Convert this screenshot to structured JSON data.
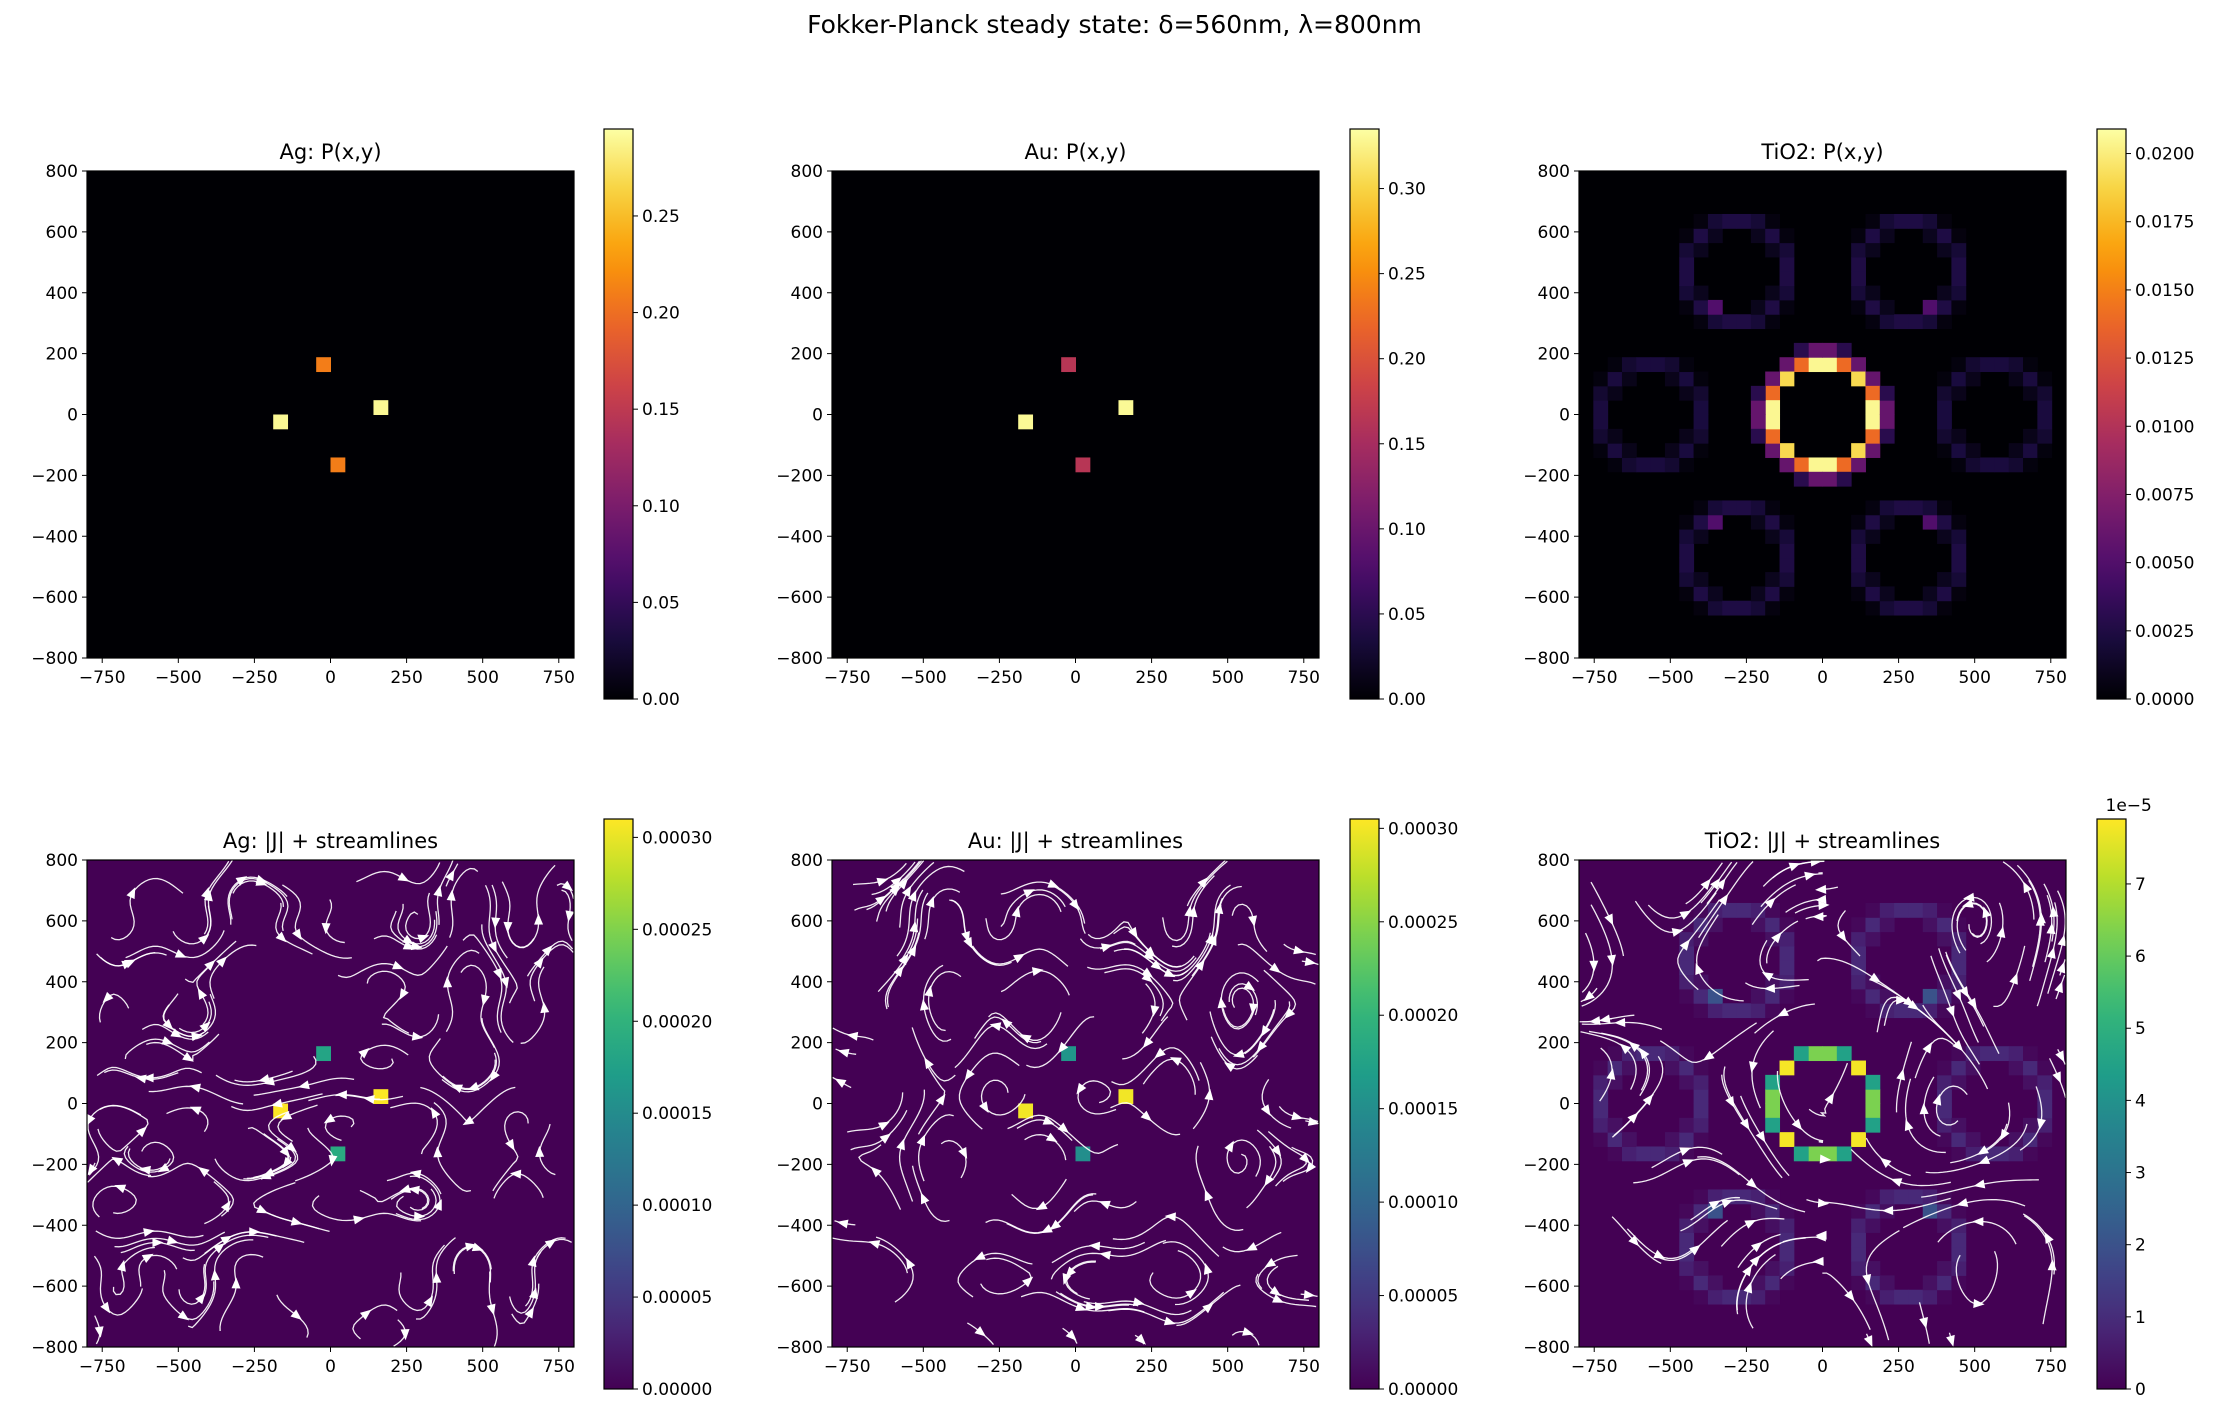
{
  "figure": {
    "title": "Fokker-Planck steady state: δ=560nm, λ=800nm"
  },
  "chart_data": [
    {
      "type": "heatmap",
      "title": "Ag: P(x,y)",
      "colormap": "inferno",
      "xlim": [
        -800,
        800
      ],
      "ylim": [
        -800,
        800
      ],
      "xticks": [
        -750,
        -500,
        -250,
        0,
        250,
        500,
        750
      ],
      "yticks": [
        -800,
        -600,
        -400,
        -200,
        0,
        200,
        400,
        600,
        800
      ],
      "clim": [
        0,
        0.295
      ],
      "cbar_ticks": [
        0,
        0.05,
        0.1,
        0.15,
        0.2,
        0.25
      ],
      "cbar_labels": [
        "0.00",
        "0.05",
        "0.10",
        "0.15",
        "0.20",
        "0.25"
      ],
      "cells": [
        [
          -23.5,
          164.7,
          0.21
        ],
        [
          164.7,
          23.5,
          0.29
        ],
        [
          -164.7,
          -23.5,
          0.29
        ],
        [
          23.5,
          -164.7,
          0.21
        ]
      ],
      "rings": [],
      "streamlines": false
    },
    {
      "type": "heatmap",
      "title": "Au: P(x,y)",
      "colormap": "inferno",
      "xlim": [
        -800,
        800
      ],
      "ylim": [
        -800,
        800
      ],
      "xticks": [
        -750,
        -500,
        -250,
        0,
        250,
        500,
        750
      ],
      "yticks": [
        -800,
        -600,
        -400,
        -200,
        0,
        200,
        400,
        600,
        800
      ],
      "clim": [
        0,
        0.335
      ],
      "cbar_ticks": [
        0,
        0.05,
        0.1,
        0.15,
        0.2,
        0.25,
        0.3
      ],
      "cbar_labels": [
        "0.00",
        "0.05",
        "0.10",
        "0.15",
        "0.20",
        "0.25",
        "0.30"
      ],
      "cells": [
        [
          -23.5,
          164.7,
          0.165
        ],
        [
          164.7,
          23.5,
          0.33
        ],
        [
          -164.7,
          -23.5,
          0.33
        ],
        [
          23.5,
          -164.7,
          0.165
        ]
      ],
      "rings": [],
      "streamlines": false
    },
    {
      "type": "heatmap",
      "title": "TiO2: P(x,y)",
      "colormap": "inferno",
      "xlim": [
        -800,
        800
      ],
      "ylim": [
        -800,
        800
      ],
      "xticks": [
        -750,
        -500,
        -250,
        0,
        250,
        500,
        750
      ],
      "yticks": [
        -800,
        -600,
        -400,
        -200,
        0,
        200,
        400,
        600,
        800
      ],
      "clim": [
        0,
        0.0209
      ],
      "cbar_ticks": [
        0,
        0.0025,
        0.005,
        0.0075,
        0.01,
        0.0125,
        0.015,
        0.0175,
        0.02
      ],
      "cbar_labels": [
        "0.0000",
        "0.0025",
        "0.0050",
        "0.0075",
        "0.0100",
        "0.0125",
        "0.0150",
        "0.0175",
        "0.0200"
      ],
      "cells": [
        [
          23.5,
          164.7,
          0.0205
        ],
        [
          -23.5,
          164.7,
          0.0205
        ],
        [
          70.6,
          164.7,
          0.014
        ],
        [
          -70.6,
          164.7,
          0.014
        ],
        [
          117.6,
          164.7,
          0.006
        ],
        [
          -117.6,
          164.7,
          0.006
        ],
        [
          23.5,
          -164.7,
          0.0205
        ],
        [
          -23.5,
          -164.7,
          0.0205
        ],
        [
          70.6,
          -164.7,
          0.014
        ],
        [
          -70.6,
          -164.7,
          0.014
        ],
        [
          117.6,
          -164.7,
          0.006
        ],
        [
          -117.6,
          -164.7,
          0.006
        ],
        [
          117.6,
          117.6,
          0.019
        ],
        [
          -117.6,
          117.6,
          0.019
        ],
        [
          117.6,
          -117.6,
          0.019
        ],
        [
          -117.6,
          -117.6,
          0.019
        ],
        [
          164.7,
          117.6,
          0.006
        ],
        [
          -164.7,
          117.6,
          0.006
        ],
        [
          164.7,
          -117.6,
          0.006
        ],
        [
          -164.7,
          -117.6,
          0.006
        ],
        [
          164.7,
          70.6,
          0.014
        ],
        [
          -164.7,
          70.6,
          0.014
        ],
        [
          164.7,
          -70.6,
          0.014
        ],
        [
          -164.7,
          -70.6,
          0.014
        ],
        [
          164.7,
          23.5,
          0.0205
        ],
        [
          -164.7,
          23.5,
          0.0205
        ],
        [
          164.7,
          -23.5,
          0.0205
        ],
        [
          -164.7,
          -23.5,
          0.0205
        ],
        [
          211.8,
          23.5,
          0.006
        ],
        [
          -211.8,
          23.5,
          0.006
        ],
        [
          211.8,
          -23.5,
          0.006
        ],
        [
          -211.8,
          -23.5,
          0.006
        ],
        [
          211.8,
          70.6,
          0.003
        ],
        [
          -211.8,
          70.6,
          0.003
        ],
        [
          211.8,
          -70.6,
          0.003
        ],
        [
          -211.8,
          -70.6,
          0.003
        ],
        [
          23.5,
          211.8,
          0.006
        ],
        [
          -23.5,
          211.8,
          0.006
        ],
        [
          23.5,
          -211.8,
          0.006
        ],
        [
          -23.5,
          -211.8,
          0.006
        ],
        [
          70.6,
          211.8,
          0.003
        ],
        [
          -70.6,
          211.8,
          0.003
        ],
        [
          70.6,
          -211.8,
          0.003
        ],
        [
          -70.6,
          -211.8,
          0.003
        ],
        [
          -353,
          352.9,
          0.005
        ],
        [
          353,
          352.9,
          0.005
        ],
        [
          -353,
          -352.9,
          0.005
        ],
        [
          353,
          -352.9,
          0.005
        ]
      ],
      "rings": [
        [
          -282,
          470,
          165,
          0.0025
        ],
        [
          282,
          470,
          165,
          0.0025
        ],
        [
          -282,
          -470,
          165,
          0.0025
        ],
        [
          282,
          -470,
          165,
          0.0025
        ],
        [
          -565,
          0,
          165,
          0.0022
        ],
        [
          565,
          0,
          165,
          0.0022
        ]
      ],
      "streamlines": false
    },
    {
      "type": "heatmap",
      "title": "Ag: |J| + streamlines",
      "colormap": "viridis",
      "xlim": [
        -800,
        800
      ],
      "ylim": [
        -800,
        800
      ],
      "xticks": [
        -750,
        -500,
        -250,
        0,
        250,
        500,
        750
      ],
      "yticks": [
        -800,
        -600,
        -400,
        -200,
        0,
        200,
        400,
        600,
        800
      ],
      "clim": [
        0,
        0.00031
      ],
      "cbar_ticks": [
        0,
        5e-05,
        0.0001,
        0.00015,
        0.0002,
        0.00025,
        0.0003
      ],
      "cbar_labels": [
        "0.00000",
        "0.00005",
        "0.00010",
        "0.00015",
        "0.00020",
        "0.00025",
        "0.00030"
      ],
      "cells": [
        [
          -23.5,
          164.7,
          0.00018
        ],
        [
          164.7,
          23.5,
          0.00031
        ],
        [
          -164.7,
          -23.5,
          0.00031
        ],
        [
          23.5,
          -164.7,
          0.00019
        ]
      ],
      "rings": [],
      "streamlines": true
    },
    {
      "type": "heatmap",
      "title": "Au: |J| + streamlines",
      "colormap": "viridis",
      "xlim": [
        -800,
        800
      ],
      "ylim": [
        -800,
        800
      ],
      "xticks": [
        -750,
        -500,
        -250,
        0,
        250,
        500,
        750
      ],
      "yticks": [
        -800,
        -600,
        -400,
        -200,
        0,
        200,
        400,
        600,
        800
      ],
      "clim": [
        0,
        0.000305
      ],
      "cbar_ticks": [
        0,
        5e-05,
        0.0001,
        0.00015,
        0.0002,
        0.00025,
        0.0003
      ],
      "cbar_labels": [
        "0.00000",
        "0.00005",
        "0.00010",
        "0.00015",
        "0.00020",
        "0.00025",
        "0.00030"
      ],
      "cells": [
        [
          -23.5,
          164.7,
          0.00016
        ],
        [
          164.7,
          23.5,
          0.0003
        ],
        [
          -164.7,
          -23.5,
          0.0003
        ],
        [
          23.5,
          -164.7,
          0.00015
        ]
      ],
      "rings": [],
      "streamlines": true
    },
    {
      "type": "heatmap",
      "title": "TiO2: |J| + streamlines",
      "colormap": "viridis",
      "xlim": [
        -800,
        800
      ],
      "ylim": [
        -800,
        800
      ],
      "xticks": [
        -750,
        -500,
        -250,
        0,
        250,
        500,
        750
      ],
      "yticks": [
        -800,
        -600,
        -400,
        -200,
        0,
        200,
        400,
        600,
        800
      ],
      "clim": [
        0,
        7.9
      ],
      "cbar_offset": "1e−5",
      "cbar_ticks": [
        0,
        1,
        2,
        3,
        4,
        5,
        6,
        7
      ],
      "cbar_labels": [
        "0",
        "1",
        "2",
        "3",
        "4",
        "5",
        "6",
        "7"
      ],
      "cells": [
        [
          117.6,
          117.6,
          7.8
        ],
        [
          -117.6,
          117.6,
          7.8
        ],
        [
          117.6,
          -117.6,
          7.8
        ],
        [
          -117.6,
          -117.6,
          7.8
        ],
        [
          23.5,
          164.7,
          6.3
        ],
        [
          -23.5,
          164.7,
          6.3
        ],
        [
          70.6,
          164.7,
          4.5
        ],
        [
          -70.6,
          164.7,
          4.5
        ],
        [
          23.5,
          -164.7,
          6.3
        ],
        [
          -23.5,
          -164.7,
          6.3
        ],
        [
          70.6,
          -164.7,
          4.5
        ],
        [
          -70.6,
          -164.7,
          4.5
        ],
        [
          164.7,
          23.5,
          6.3
        ],
        [
          164.7,
          -23.5,
          6.3
        ],
        [
          164.7,
          70.6,
          4.5
        ],
        [
          164.7,
          -70.6,
          4.5
        ],
        [
          -164.7,
          23.5,
          6.3
        ],
        [
          -164.7,
          -23.5,
          6.3
        ],
        [
          -164.7,
          70.6,
          4.5
        ],
        [
          -164.7,
          -70.6,
          4.5
        ],
        [
          -353,
          -352.9,
          2
        ],
        [
          353,
          -352.9,
          2
        ],
        [
          -353,
          352.9,
          2
        ],
        [
          353,
          352.9,
          2
        ]
      ],
      "rings": [
        [
          -282,
          470,
          165,
          0.9
        ],
        [
          282,
          470,
          165,
          0.9
        ],
        [
          -282,
          -470,
          165,
          0.9
        ],
        [
          282,
          -470,
          165,
          0.9
        ],
        [
          -565,
          0,
          165,
          0.9
        ],
        [
          565,
          0,
          165,
          0.9
        ]
      ],
      "streamlines": true
    }
  ]
}
